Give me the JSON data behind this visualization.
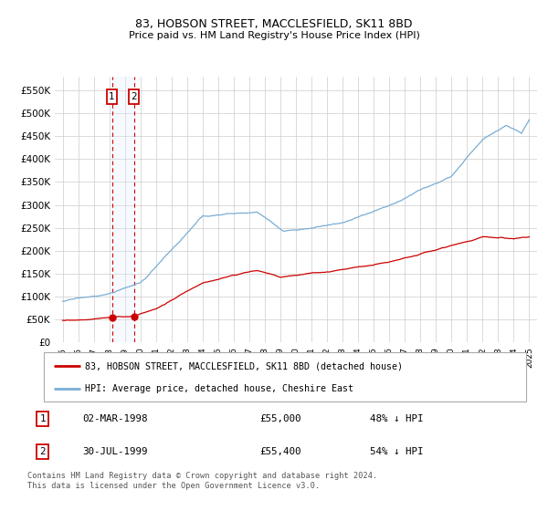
{
  "title": "83, HOBSON STREET, MACCLESFIELD, SK11 8BD",
  "subtitle": "Price paid vs. HM Land Registry's House Price Index (HPI)",
  "legend_line1": "83, HOBSON STREET, MACCLESFIELD, SK11 8BD (detached house)",
  "legend_line2": "HPI: Average price, detached house, Cheshire East",
  "footnote": "Contains HM Land Registry data © Crown copyright and database right 2024.\nThis data is licensed under the Open Government Licence v3.0.",
  "transaction1_date": "02-MAR-1998",
  "transaction1_price": "£55,000",
  "transaction1_hpi": "48% ↓ HPI",
  "transaction2_date": "30-JUL-1999",
  "transaction2_price": "£55,400",
  "transaction2_hpi": "54% ↓ HPI",
  "transaction1_x": 1998.17,
  "transaction1_y": 55000,
  "transaction2_x": 1999.58,
  "transaction2_y": 55400,
  "vline1_x": 1998.17,
  "vline2_x": 1999.58,
  "red_line_color": "#cc0000",
  "blue_line_color": "#7aadd4",
  "vline_color": "#cc0000",
  "vline_fill_color": "#ddeeff",
  "background_color": "#ffffff",
  "grid_color": "#cccccc",
  "xlim": [
    1994.5,
    2025.5
  ],
  "ylim": [
    0,
    580000
  ],
  "yticks": [
    0,
    50000,
    100000,
    150000,
    200000,
    250000,
    300000,
    350000,
    400000,
    450000,
    500000,
    550000
  ],
  "ytick_labels": [
    "£0",
    "£50K",
    "£100K",
    "£150K",
    "£200K",
    "£250K",
    "£300K",
    "£350K",
    "£400K",
    "£450K",
    "£500K",
    "£550K"
  ]
}
